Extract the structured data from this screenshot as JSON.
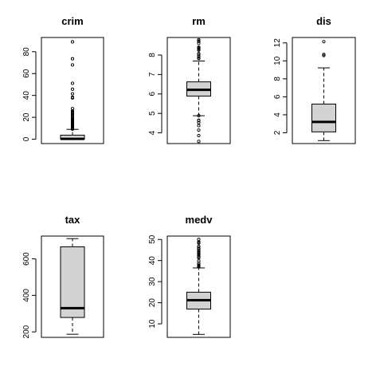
{
  "chart_data": [
    {
      "type": "boxplot",
      "title": "crim",
      "ylim": [
        -4,
        93
      ],
      "yticks": [
        0,
        20,
        40,
        60,
        80
      ],
      "box": {
        "whisker_low": 0.006,
        "q1": 0.08,
        "median": 0.26,
        "q3": 3.68,
        "whisker_high": 8.98
      },
      "outliers": [
        9.2,
        9.9,
        10.8,
        11.1,
        11.6,
        12.0,
        12.3,
        13.5,
        13.9,
        14.3,
        15.0,
        15.3,
        15.9,
        16.8,
        17.9,
        18.5,
        18.8,
        19.6,
        20.1,
        20.7,
        22.0,
        22.6,
        23.6,
        24.4,
        25.0,
        25.9,
        28.0,
        37.7,
        38.4,
        41.5,
        45.7,
        51.1,
        67.9,
        73.5,
        89.0
      ]
    },
    {
      "type": "boxplot",
      "title": "rm",
      "ylim": [
        3.45,
        8.9
      ],
      "yticks": [
        4,
        5,
        6,
        7,
        8
      ],
      "box": {
        "whisker_low": 4.88,
        "q1": 5.89,
        "median": 6.21,
        "q3": 6.62,
        "whisker_high": 7.69
      },
      "outliers": [
        3.56,
        3.86,
        4.14,
        4.37,
        4.52,
        4.63,
        4.65,
        4.88,
        7.82,
        7.85,
        7.92,
        8.03,
        8.07,
        8.25,
        8.3,
        8.34,
        8.38,
        8.4,
        8.6,
        8.7,
        8.72,
        8.78
      ]
    },
    {
      "type": "boxplot",
      "title": "dis",
      "ylim": [
        0.8,
        12.6
      ],
      "yticks": [
        2,
        4,
        6,
        8,
        10,
        12
      ],
      "box": {
        "whisker_low": 1.13,
        "q1": 2.1,
        "median": 3.21,
        "q3": 5.19,
        "whisker_high": 9.22
      },
      "outliers": [
        10.59,
        10.71,
        12.13
      ]
    },
    {
      "type": "boxplot",
      "title": "tax",
      "ylim": [
        170,
        725
      ],
      "yticks": [
        200,
        400,
        600
      ],
      "box": {
        "whisker_low": 187,
        "q1": 279,
        "median": 330,
        "q3": 666,
        "whisker_high": 711
      },
      "outliers": []
    },
    {
      "type": "boxplot",
      "title": "medv",
      "ylim": [
        3.6,
        51.6
      ],
      "yticks": [
        10,
        20,
        30,
        40,
        50
      ],
      "box": {
        "whisker_low": 5.0,
        "q1": 17.0,
        "median": 21.2,
        "q3": 25.0,
        "whisker_high": 36.5
      },
      "outliers": [
        37.0,
        37.2,
        37.3,
        37.6,
        37.9,
        38.7,
        39.8,
        41.3,
        41.7,
        42.3,
        42.8,
        43.1,
        43.5,
        43.8,
        44.0,
        44.8,
        45.4,
        46.0,
        46.7,
        48.3,
        48.5,
        48.8,
        50.0
      ]
    }
  ]
}
